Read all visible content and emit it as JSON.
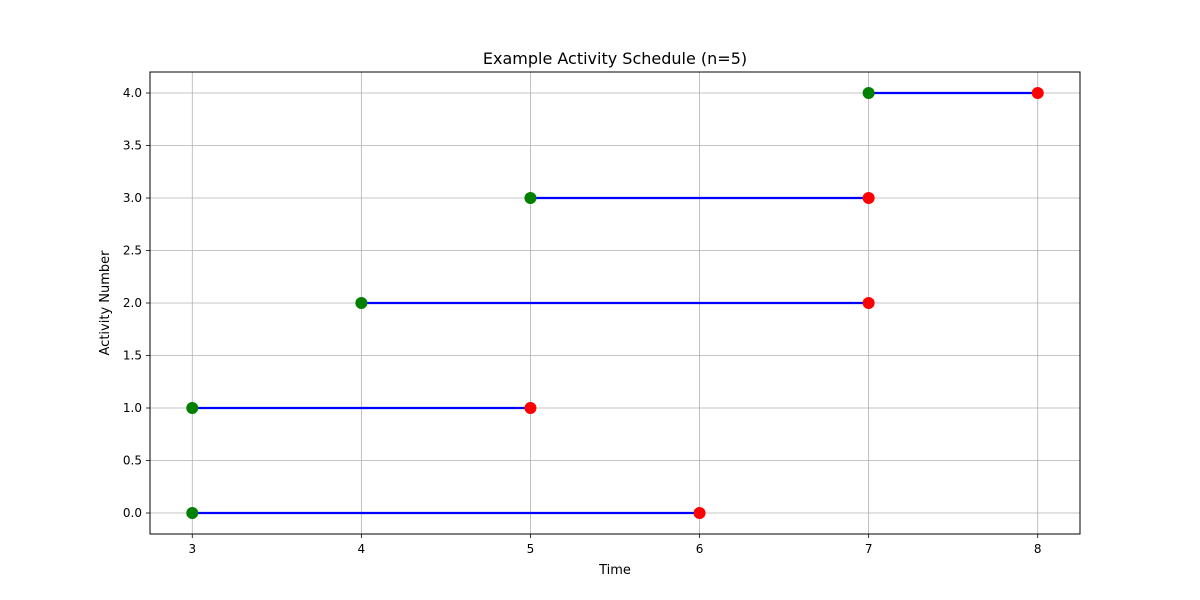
{
  "chart_data": {
    "type": "line",
    "title": "Example Activity Schedule (n=5)",
    "xlabel": "Time",
    "ylabel": "Activity Number",
    "xlim": [
      2.75,
      8.25
    ],
    "ylim": [
      -0.2,
      4.2
    ],
    "xticks": [
      3,
      4,
      5,
      6,
      7,
      8
    ],
    "xtick_labels": [
      "3",
      "4",
      "5",
      "6",
      "7",
      "8"
    ],
    "yticks": [
      0,
      0.5,
      1,
      1.5,
      2,
      2.5,
      3,
      3.5,
      4
    ],
    "ytick_labels": [
      "0.0",
      "0.5",
      "1.0",
      "1.5",
      "2.0",
      "2.5",
      "3.0",
      "3.5",
      "4.0"
    ],
    "grid": true,
    "activities": [
      {
        "activity": 0,
        "start": 3,
        "finish": 6
      },
      {
        "activity": 1,
        "start": 3,
        "finish": 5
      },
      {
        "activity": 2,
        "start": 4,
        "finish": 7
      },
      {
        "activity": 3,
        "start": 5,
        "finish": 7
      },
      {
        "activity": 4,
        "start": 7,
        "finish": 8
      }
    ],
    "colors": {
      "segment": "#0000ff",
      "start_marker": "#008000",
      "finish_marker": "#ff0000",
      "grid": "#b0b0b0",
      "axes": "#000000"
    }
  }
}
